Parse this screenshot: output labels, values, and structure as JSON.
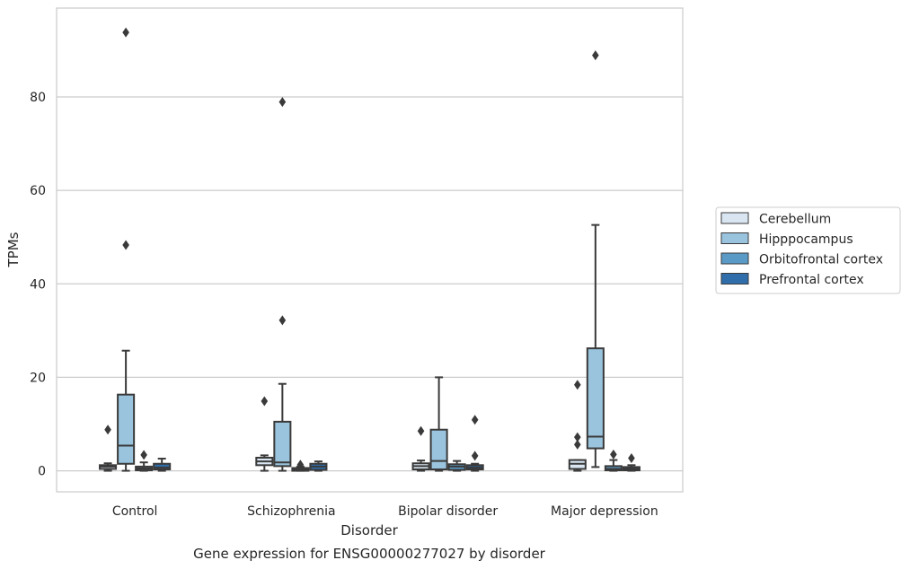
{
  "chart_data": {
    "type": "box",
    "xlabel": "Disorder",
    "ylabel": "TPMs",
    "caption": "Gene expression for ENSG00000277027 by disorder",
    "ylim": [
      -4.5,
      99
    ],
    "yticks": [
      0,
      20,
      40,
      60,
      80
    ],
    "ytick_labels": [
      "0",
      "20",
      "40",
      "60",
      "80"
    ],
    "grid": "horizontal",
    "legend_position": "right",
    "categories": [
      "Control",
      "Schizophrenia",
      "Bipolar disorder",
      "Major depression"
    ],
    "series": [
      {
        "name": "Cerebellum",
        "color": "#d9e6f2",
        "boxes": [
          {
            "whislo": 0.0,
            "q1": 0.4,
            "median": 0.9,
            "q3": 1.2,
            "whishi": 1.6,
            "fliers": [
              8.8
            ]
          },
          {
            "whislo": 0.0,
            "q1": 1.2,
            "median": 2.0,
            "q3": 2.8,
            "whishi": 3.3,
            "fliers": [
              14.9
            ]
          },
          {
            "whislo": 0.0,
            "q1": 0.3,
            "median": 1.0,
            "q3": 1.6,
            "whishi": 2.2,
            "fliers": [
              8.5
            ]
          },
          {
            "whislo": 0.0,
            "q1": 0.4,
            "median": 1.5,
            "q3": 2.3,
            "whishi": 2.3,
            "fliers": [
              5.6,
              7.2,
              18.4
            ]
          }
        ]
      },
      {
        "name": "Hipppocampus",
        "color": "#9ac4de",
        "boxes": [
          {
            "whislo": 0.0,
            "q1": 1.5,
            "median": 5.4,
            "q3": 16.3,
            "whishi": 25.7,
            "fliers": [
              48.3,
              93.8
            ]
          },
          {
            "whislo": 0.0,
            "q1": 1.0,
            "median": 1.8,
            "q3": 10.5,
            "whishi": 18.6,
            "fliers": [
              32.2,
              78.9
            ]
          },
          {
            "whislo": 0.0,
            "q1": 0.3,
            "median": 2.1,
            "q3": 8.8,
            "whishi": 20.0,
            "fliers": []
          },
          {
            "whislo": 0.8,
            "q1": 4.8,
            "median": 7.3,
            "q3": 26.2,
            "whishi": 52.6,
            "fliers": [
              88.9
            ]
          }
        ]
      },
      {
        "name": "Orbitofrontal cortex",
        "color": "#5a9ac6",
        "boxes": [
          {
            "whislo": 0.0,
            "q1": 0.1,
            "median": 0.5,
            "q3": 0.9,
            "whishi": 1.8,
            "fliers": [
              3.4
            ]
          },
          {
            "whislo": 0.0,
            "q1": 0.0,
            "median": 0.3,
            "q3": 0.6,
            "whishi": 0.9,
            "fliers": [
              1.3
            ]
          },
          {
            "whislo": 0.0,
            "q1": 0.2,
            "median": 0.9,
            "q3": 1.4,
            "whishi": 2.1,
            "fliers": []
          },
          {
            "whislo": 0.0,
            "q1": 0.1,
            "median": 0.4,
            "q3": 1.0,
            "whishi": 2.3,
            "fliers": [
              3.5
            ]
          }
        ]
      },
      {
        "name": "Prefrontal cortex",
        "color": "#2f6eaa",
        "boxes": [
          {
            "whislo": 0.0,
            "q1": 0.3,
            "median": 0.7,
            "q3": 1.5,
            "whishi": 2.6,
            "fliers": []
          },
          {
            "whislo": 0.0,
            "q1": 0.2,
            "median": 0.9,
            "q3": 1.5,
            "whishi": 2.0,
            "fliers": []
          },
          {
            "whislo": 0.0,
            "q1": 0.3,
            "median": 0.7,
            "q3": 1.2,
            "whishi": 1.5,
            "fliers": [
              3.2,
              10.9
            ]
          },
          {
            "whislo": 0.0,
            "q1": 0.1,
            "median": 0.4,
            "q3": 0.8,
            "whishi": 1.2,
            "fliers": [
              2.7
            ]
          }
        ]
      }
    ]
  }
}
